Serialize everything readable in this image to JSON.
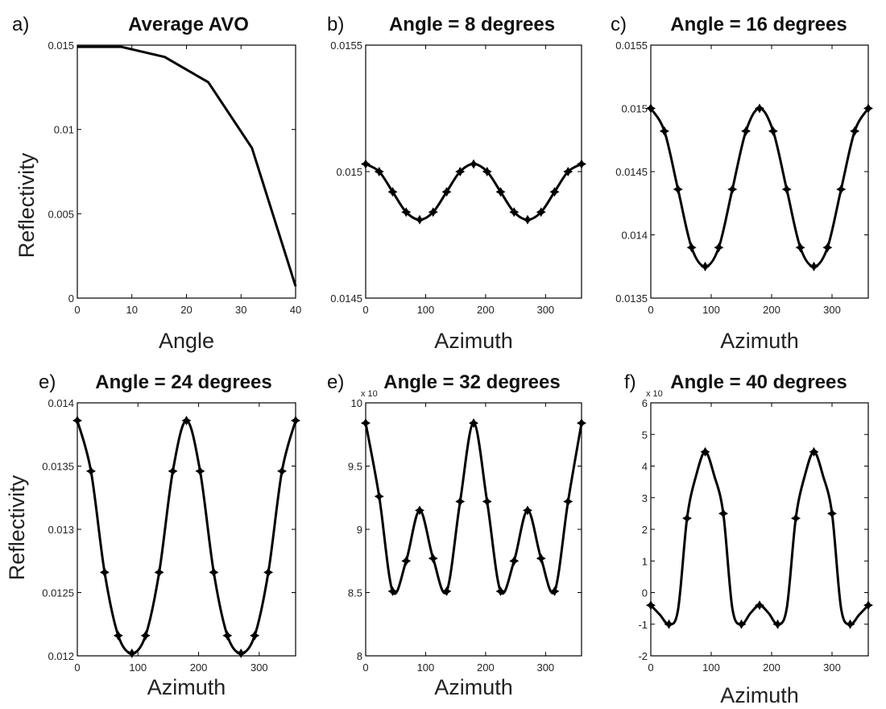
{
  "chart_data": [
    {
      "type": "line",
      "letter": "a)",
      "title": "Average AVO",
      "xlabel": "Angle",
      "ylabel": "Reflectivity",
      "xlim": [
        0,
        40
      ],
      "ylim": [
        0,
        0.015
      ],
      "xticks": [
        0,
        10,
        20,
        30,
        40
      ],
      "xtick_labels": [
        "0",
        "10",
        "20",
        "30",
        "40"
      ],
      "yticks": [
        0,
        0.005,
        0.01,
        0.015
      ],
      "ytick_labels": [
        "0",
        "0.005",
        "0.01",
        "0.015"
      ],
      "markers": false,
      "x": [
        0,
        8,
        16,
        24,
        32,
        40
      ],
      "y": [
        0.0149,
        0.0149,
        0.0143,
        0.0128,
        0.0089,
        0.0007
      ]
    },
    {
      "type": "line",
      "letter": "b)",
      "title": "Angle = 8 degrees",
      "xlabel": "Azimuth",
      "ylabel": "",
      "xlim": [
        0,
        360
      ],
      "ylim": [
        0.0145,
        0.0155
      ],
      "xticks": [
        0,
        100,
        200,
        300
      ],
      "xtick_labels": [
        "0",
        "100",
        "200",
        "300"
      ],
      "yticks": [
        0.0145,
        0.015,
        0.0155
      ],
      "ytick_labels": [
        "0.0145",
        "0.015",
        "0.0155"
      ],
      "markers": true,
      "x": [
        0,
        22.5,
        45,
        67.5,
        90,
        112.5,
        135,
        157.5,
        180,
        202.5,
        225,
        247.5,
        270,
        292.5,
        315,
        337.5,
        360
      ],
      "y": [
        0.01503,
        0.015,
        0.01492,
        0.01484,
        0.01481,
        0.01484,
        0.01492,
        0.015,
        0.01503,
        0.015,
        0.01492,
        0.01484,
        0.01481,
        0.01484,
        0.01492,
        0.015,
        0.01503
      ]
    },
    {
      "type": "line",
      "letter": "c)",
      "title": "Angle = 16 degrees",
      "xlabel": "Azimuth",
      "ylabel": "",
      "xlim": [
        0,
        360
      ],
      "ylim": [
        0.0135,
        0.0155
      ],
      "xticks": [
        0,
        100,
        200,
        300
      ],
      "xtick_labels": [
        "0",
        "100",
        "200",
        "300"
      ],
      "yticks": [
        0.0135,
        0.014,
        0.0145,
        0.015,
        0.0155
      ],
      "ytick_labels": [
        "0.0135",
        "0.014",
        "0.0145",
        "0.015",
        "0.0155"
      ],
      "markers": true,
      "x": [
        0,
        22.5,
        45,
        67.5,
        90,
        112.5,
        135,
        157.5,
        180,
        202.5,
        225,
        247.5,
        270,
        292.5,
        315,
        337.5,
        360
      ],
      "y": [
        0.015,
        0.01482,
        0.01436,
        0.0139,
        0.01375,
        0.0139,
        0.01436,
        0.01482,
        0.015,
        0.01482,
        0.01436,
        0.0139,
        0.01375,
        0.0139,
        0.01436,
        0.01482,
        0.015
      ]
    },
    {
      "type": "line",
      "letter": "e)",
      "title": "Angle = 24 degrees",
      "xlabel": "Azimuth",
      "ylabel": "Reflectivity",
      "xlim": [
        0,
        360
      ],
      "ylim": [
        0.012,
        0.014
      ],
      "xticks": [
        0,
        100,
        200,
        300
      ],
      "xtick_labels": [
        "0",
        "100",
        "200",
        "300"
      ],
      "yticks": [
        0.012,
        0.0125,
        0.013,
        0.0135,
        0.014
      ],
      "ytick_labels": [
        "0.012",
        "0.0125",
        "0.013",
        "0.0135",
        "0.014"
      ],
      "markers": true,
      "x": [
        0,
        22.5,
        45,
        67.5,
        90,
        112.5,
        135,
        157.5,
        180,
        202.5,
        225,
        247.5,
        270,
        292.5,
        315,
        337.5,
        360
      ],
      "y": [
        0.01386,
        0.01346,
        0.01266,
        0.01216,
        0.01202,
        0.01216,
        0.01266,
        0.01346,
        0.01386,
        0.01346,
        0.01266,
        0.01216,
        0.01202,
        0.01216,
        0.01266,
        0.01346,
        0.01386
      ]
    },
    {
      "type": "line",
      "letter": "e)",
      "title": "Angle = 32 degrees",
      "xlabel": "Azimuth",
      "ylabel": "",
      "exponent": "x 10",
      "xlim": [
        0,
        360
      ],
      "ylim": [
        8,
        10
      ],
      "xticks": [
        0,
        100,
        200,
        300
      ],
      "xtick_labels": [
        "0",
        "100",
        "200",
        "300"
      ],
      "yticks": [
        8,
        8.5,
        9,
        9.5,
        10
      ],
      "ytick_labels": [
        "8",
        "8.5",
        "9",
        "9.5",
        "10"
      ],
      "markers": true,
      "x": [
        0,
        22.5,
        45,
        67.5,
        90,
        112.5,
        135,
        157.5,
        180,
        202.5,
        225,
        247.5,
        270,
        292.5,
        315,
        337.5,
        360
      ],
      "y": [
        9.84,
        9.26,
        8.51,
        8.75,
        9.15,
        8.77,
        8.51,
        9.22,
        9.84,
        9.22,
        8.51,
        8.75,
        9.15,
        8.77,
        8.51,
        9.22,
        9.84
      ]
    },
    {
      "type": "line",
      "letter": "f)",
      "title": "Angle = 40 degrees",
      "xlabel": "Azimuth",
      "ylabel": "",
      "exponent": "x 10",
      "xlim": [
        0,
        360
      ],
      "ylim": [
        -2,
        6
      ],
      "xticks": [
        0,
        100,
        200,
        300
      ],
      "xtick_labels": [
        "0",
        "100",
        "200",
        "300"
      ],
      "yticks": [
        -2,
        -1,
        0,
        1,
        2,
        3,
        4,
        5,
        6
      ],
      "ytick_labels": [
        "-2",
        "-1",
        "0",
        "1",
        "2",
        "3",
        "4",
        "5",
        "6"
      ],
      "markers": true,
      "x": [
        0,
        15,
        30,
        45,
        60,
        75,
        90,
        105,
        120,
        135,
        150,
        165,
        180,
        195,
        210,
        225,
        240,
        255,
        270,
        285,
        300,
        315,
        330,
        345,
        360
      ],
      "y": [
        -0.4,
        -0.7,
        -1.0,
        -0.55,
        2.35,
        3.7,
        4.45,
        3.7,
        2.5,
        -0.5,
        -1.0,
        -0.65,
        -0.4,
        -0.65,
        -1.0,
        -0.5,
        2.35,
        3.7,
        4.45,
        3.7,
        2.5,
        -0.5,
        -1.0,
        -0.7,
        -0.4
      ],
      "marker_x": [
        0,
        30,
        60,
        90,
        120,
        150,
        180,
        210,
        240,
        270,
        300,
        330,
        360
      ]
    }
  ]
}
